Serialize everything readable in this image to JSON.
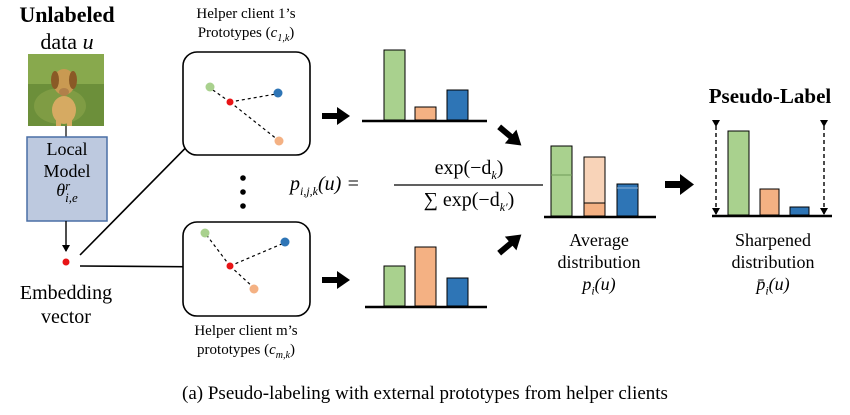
{
  "input": {
    "title": "Unlabeled",
    "subtitle": "data",
    "var": "u",
    "image_icon": "dog-photo"
  },
  "model": {
    "line1": "Local",
    "line2": "Model",
    "theta": "θ",
    "theta_sup": "r",
    "theta_sub": "i,e"
  },
  "embedding": {
    "line1": "Embedding",
    "line2": "vector"
  },
  "helper1": {
    "line1": "Helper client 1’s",
    "line2_prefix": "Prototypes (",
    "c": "c",
    "c_sub": "1,k",
    "line2_suffix": ")"
  },
  "helperm": {
    "line1": "Helper client m’s",
    "line2_prefix": "prototypes (",
    "c": "c",
    "c_sub": "m,k",
    "line2_suffix": ")"
  },
  "formula": {
    "lhs_p": "p",
    "lhs_sub": "i,j,k",
    "lhs_arg": "(u) =",
    "numerator": "exp(−d",
    "num_sub": "k",
    "num_close": ")",
    "denominator": "∑ exp(−d",
    "den_sub": "k′",
    "den_close": ")"
  },
  "average": {
    "line1": "Average",
    "line2": "distribution",
    "p": "p",
    "p_sub": "i",
    "arg": "(u)"
  },
  "sharpened": {
    "title": "Pseudo-Label",
    "line1": "Sharpened",
    "line2": "distribution",
    "p": "p̄",
    "p_sub": "i",
    "arg": "(u)"
  },
  "caption": "(a)  Pseudo-labeling with external prototypes from helper clients",
  "colors": {
    "green": "#a9d18e",
    "orange": "#f4b183",
    "blue": "#2e75b6",
    "red": "#e81416",
    "model_box": "#bdc9df",
    "model_border": "#4a6fa5"
  }
}
